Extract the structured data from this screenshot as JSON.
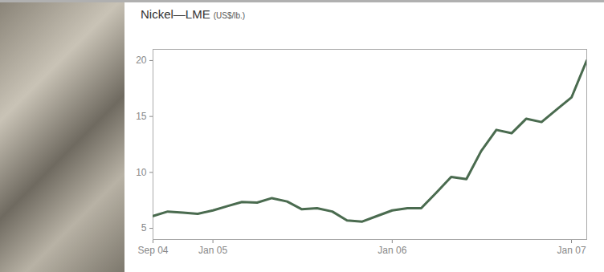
{
  "chart_data": {
    "type": "line",
    "title": "Nickel—LME",
    "subtitle": "(US$/lb.)",
    "x": [
      "2004-09",
      "2004-10",
      "2004-11",
      "2004-12",
      "2005-01",
      "2005-02",
      "2005-03",
      "2005-04",
      "2005-05",
      "2005-06",
      "2005-07",
      "2005-08",
      "2005-09",
      "2005-10",
      "2005-11",
      "2005-12",
      "2006-01",
      "2006-02",
      "2006-03",
      "2006-04",
      "2006-05",
      "2006-06",
      "2006-07",
      "2006-08",
      "2006-09",
      "2006-10",
      "2006-11",
      "2006-12",
      "2007-01",
      "2007-02"
    ],
    "values": [
      6.1,
      6.5,
      6.4,
      6.3,
      6.6,
      7.0,
      7.35,
      7.3,
      7.7,
      7.4,
      6.7,
      6.8,
      6.5,
      5.7,
      5.6,
      6.1,
      6.6,
      6.8,
      6.8,
      8.2,
      9.6,
      9.4,
      11.9,
      13.8,
      13.5,
      14.8,
      14.5,
      15.6,
      16.7,
      20
    ],
    "color": "#4a6b4f",
    "xlim": [
      "2004-09",
      "2007-02"
    ],
    "xticks": [
      {
        "value": "2004-09",
        "label": "Sep 04"
      },
      {
        "value": "2005-01",
        "label": "Jan 05"
      },
      {
        "value": "2006-01",
        "label": "Jan 06"
      },
      {
        "value": "2007-01",
        "label": "Jan 07"
      }
    ],
    "ylim": [
      4,
      21
    ],
    "yticks": [
      5,
      10,
      15,
      20
    ],
    "grid": false
  }
}
